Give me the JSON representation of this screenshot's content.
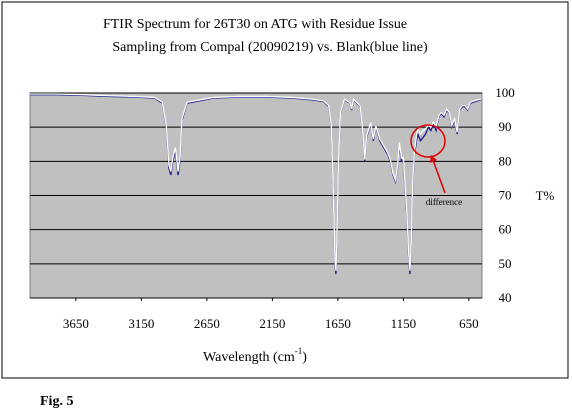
{
  "chart_data": {
    "type": "line",
    "title": "FTIR Spectrum for 26T30 on ATG with Residue Issue",
    "subtitle": "Sampling from Compal (20090219) vs. Blank(blue line)",
    "x_label": {
      "text": "Wavelength (cm",
      "superscript": "-1",
      "suffix": ")"
    },
    "y_label": "T%",
    "annotation": "difference",
    "caption": "Fig. 5",
    "background": "#c0c0c0",
    "grid": true,
    "xlim": [
      4000,
      550
    ],
    "xticks": [
      3650,
      3150,
      2650,
      2150,
      1650,
      1150,
      650
    ],
    "ylim": [
      40,
      100
    ],
    "yticks": [
      100,
      90,
      80,
      70,
      60,
      50,
      40
    ],
    "x": [
      4000,
      3800,
      3600,
      3400,
      3200,
      3050,
      2990,
      2960,
      2940,
      2925,
      2910,
      2890,
      2870,
      2855,
      2840,
      2800,
      2600,
      2400,
      2200,
      2000,
      1850,
      1760,
      1720,
      1700,
      1685,
      1672,
      1665,
      1658,
      1645,
      1630,
      1600,
      1560,
      1545,
      1530,
      1480,
      1460,
      1445,
      1430,
      1400,
      1380,
      1360,
      1330,
      1300,
      1270,
      1250,
      1230,
      1210,
      1195,
      1180,
      1165,
      1150,
      1125,
      1110,
      1100,
      1090,
      1080,
      1065,
      1050,
      1040,
      1020,
      1000,
      980,
      960,
      940,
      920,
      900,
      880,
      860,
      840,
      820,
      800,
      780,
      760,
      740,
      720,
      700,
      680,
      660,
      640,
      600,
      560
    ],
    "series": [
      {
        "name": "Blank",
        "color": "#1a1a8c",
        "values": [
          99.5,
          99.5,
          99.3,
          99,
          98.8,
          98.5,
          97,
          90,
          78,
          76,
          80,
          83,
          76,
          80,
          92,
          97,
          98.5,
          98.8,
          98.8,
          98.5,
          98,
          97.5,
          96,
          90,
          70,
          50,
          47,
          55,
          80,
          94,
          98,
          97,
          95,
          98,
          96,
          88,
          80,
          87,
          91,
          86,
          90,
          86,
          84,
          82,
          80,
          76,
          74,
          78,
          85,
          80,
          80,
          65,
          52,
          47,
          55,
          72,
          82,
          86,
          88,
          86,
          87,
          88,
          90,
          89,
          91,
          89,
          93,
          94,
          93,
          95,
          94,
          90,
          92,
          88,
          95,
          96,
          96,
          95,
          97,
          97.5,
          98
        ]
      },
      {
        "name": "Sample",
        "color": "#ffffff",
        "values": [
          99.7,
          99.7,
          99.5,
          99.2,
          99,
          98.7,
          97.3,
          90.5,
          79,
          77,
          81,
          84,
          77,
          81,
          92.5,
          97.3,
          98.7,
          99,
          99,
          98.7,
          98.2,
          97.7,
          96.3,
          90.5,
          71,
          51,
          48,
          56,
          80.5,
          94.3,
          98.2,
          97.2,
          95.3,
          98.2,
          96.2,
          88.5,
          80.5,
          87.5,
          91.3,
          86.5,
          90.3,
          86.5,
          84.5,
          82.5,
          80.5,
          76.5,
          74.5,
          78.5,
          85.5,
          81,
          81,
          66,
          53,
          48,
          56,
          73,
          83,
          87.5,
          89.5,
          88,
          89,
          89.5,
          90.5,
          90,
          91.5,
          90,
          93.3,
          94.3,
          93.5,
          95.3,
          94.3,
          90.5,
          92.5,
          88.5,
          95.3,
          96.3,
          96.3,
          95.3,
          97.3,
          97.8,
          98.2
        ]
      }
    ]
  }
}
